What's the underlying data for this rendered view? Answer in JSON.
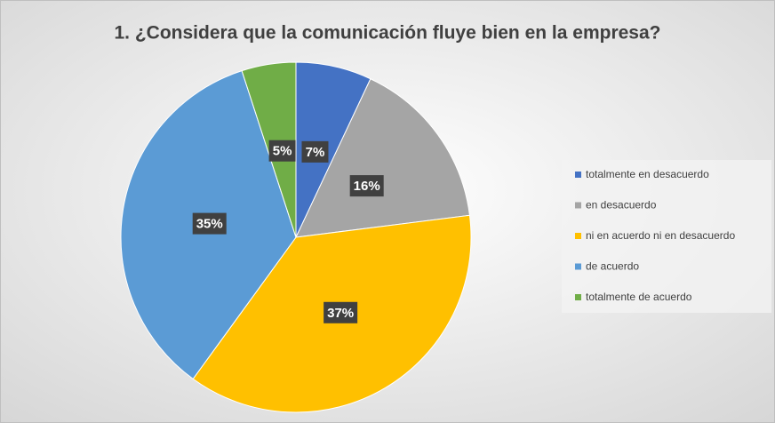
{
  "chart_data": {
    "type": "pie",
    "title": "1. ¿Considera que la comunicación fluye bien en la empresa?",
    "categories": [
      "totalmente en desacuerdo",
      "en desacuerdo",
      "ni en acuerdo ni en desacuerdo",
      "de acuerdo",
      "totalmente de acuerdo"
    ],
    "values": [
      7,
      16,
      37,
      35,
      5
    ],
    "value_labels": [
      "7%",
      "16%",
      "37%",
      "35%",
      "5%"
    ],
    "colors": [
      "#4472c4",
      "#a5a5a5",
      "#ffc000",
      "#5b9bd5",
      "#70ad47"
    ],
    "legend": "right"
  }
}
